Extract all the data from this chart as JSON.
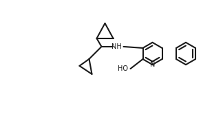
{
  "bg": "#ffffff",
  "line_color": "#1a1a1a",
  "lw": 1.5,
  "atoms": {
    "N_label": "N",
    "NH_label": "NH",
    "HO_label": "HO"
  }
}
